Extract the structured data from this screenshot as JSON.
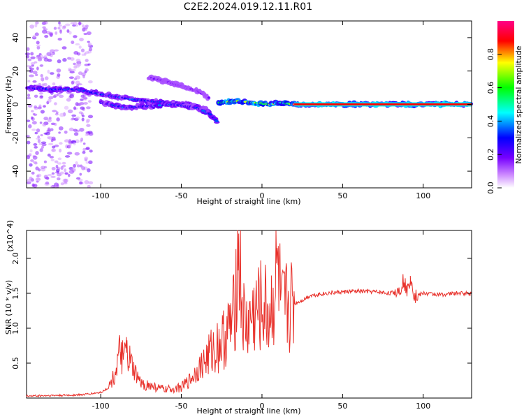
{
  "title": "C2E2.2024.019.12.11.R01",
  "chart_data": [
    {
      "type": "heatmap",
      "xlabel": "Height of straight line (km)",
      "ylabel": "Frequency (Hz)",
      "xlim": [
        -146,
        130
      ],
      "ylim": [
        -50,
        50
      ],
      "xticks": [
        -100,
        -50,
        0,
        50,
        100
      ],
      "yticks": [
        -40,
        -20,
        0,
        20,
        40
      ],
      "grid": false,
      "colorbar": {
        "label": "Normalized spectral amplitude",
        "range": [
          0,
          1
        ],
        "ticks": [
          "0.0",
          "0.2",
          "0.4",
          "0.6",
          "0.8"
        ],
        "colors": [
          "#ffffff",
          "#8800ff",
          "#0000ff",
          "#00ffff",
          "#00ff00",
          "#ffff00",
          "#ff0000",
          "#ff0099"
        ]
      },
      "tracks": [
        {
          "x": [
            -146,
            -130,
            -115,
            -100,
            -80,
            -60,
            -45,
            -35,
            -28
          ],
          "y": [
            10,
            9,
            9,
            6,
            3,
            1,
            0,
            -3,
            -10
          ],
          "amplitude": 0.3
        },
        {
          "x": [
            -100,
            -85,
            -70,
            -55,
            -40,
            -32
          ],
          "y": [
            1,
            -2,
            -1,
            0,
            -2,
            -6
          ],
          "amplitude": 0.3
        },
        {
          "x": [
            -70,
            -60,
            -50,
            -40,
            -33
          ],
          "y": [
            16,
            14,
            11,
            8,
            4
          ],
          "amplitude": 0.15
        },
        {
          "x": [
            -27,
            -15,
            -5,
            5,
            12,
            20,
            130
          ],
          "y": [
            1,
            2,
            1,
            0,
            1,
            0,
            0
          ],
          "amplitude": 0.6
        },
        {
          "x": [
            20,
            130
          ],
          "y": [
            0,
            0
          ],
          "amplitude": 0.85
        }
      ]
    },
    {
      "type": "line",
      "xlabel": "Height of straight line (km)",
      "ylabel": "SNR (10 * v/v)",
      "y_multiplier": "(x10^4)",
      "xlim": [
        -146,
        130
      ],
      "ylim": [
        0,
        2.4
      ],
      "xticks": [
        -100,
        -50,
        0,
        50,
        100
      ],
      "yticks": [
        "0.5",
        "1.0",
        "1.5",
        "2.0"
      ],
      "color": "#e8302a",
      "series": [
        {
          "x": [
            -146,
            -120,
            -110,
            -100,
            -95,
            -92,
            -90,
            -88,
            -86,
            -84,
            -80,
            -75,
            -70,
            -60,
            -50,
            -45,
            -40,
            -35,
            -30,
            -25,
            -20,
            -17,
            -15,
            -12,
            -10,
            -5,
            0,
            5,
            8,
            10,
            12,
            15,
            20,
            25,
            30,
            40,
            50,
            60,
            70,
            80,
            85,
            88,
            90,
            92,
            95,
            100,
            110,
            120,
            130
          ],
          "y": [
            0.03,
            0.04,
            0.05,
            0.08,
            0.15,
            0.3,
            0.45,
            0.65,
            0.55,
            0.65,
            0.4,
            0.2,
            0.18,
            0.12,
            0.15,
            0.25,
            0.4,
            0.55,
            0.7,
            0.8,
            1.0,
            1.2,
            2.4,
            1.2,
            1.0,
            1.2,
            1.3,
            1.2,
            1.5,
            1.9,
            1.2,
            1.3,
            1.35,
            1.4,
            1.47,
            1.5,
            1.52,
            1.53,
            1.52,
            1.5,
            1.55,
            1.7,
            1.5,
            1.75,
            1.45,
            1.5,
            1.48,
            1.5,
            1.5
          ]
        }
      ]
    }
  ]
}
